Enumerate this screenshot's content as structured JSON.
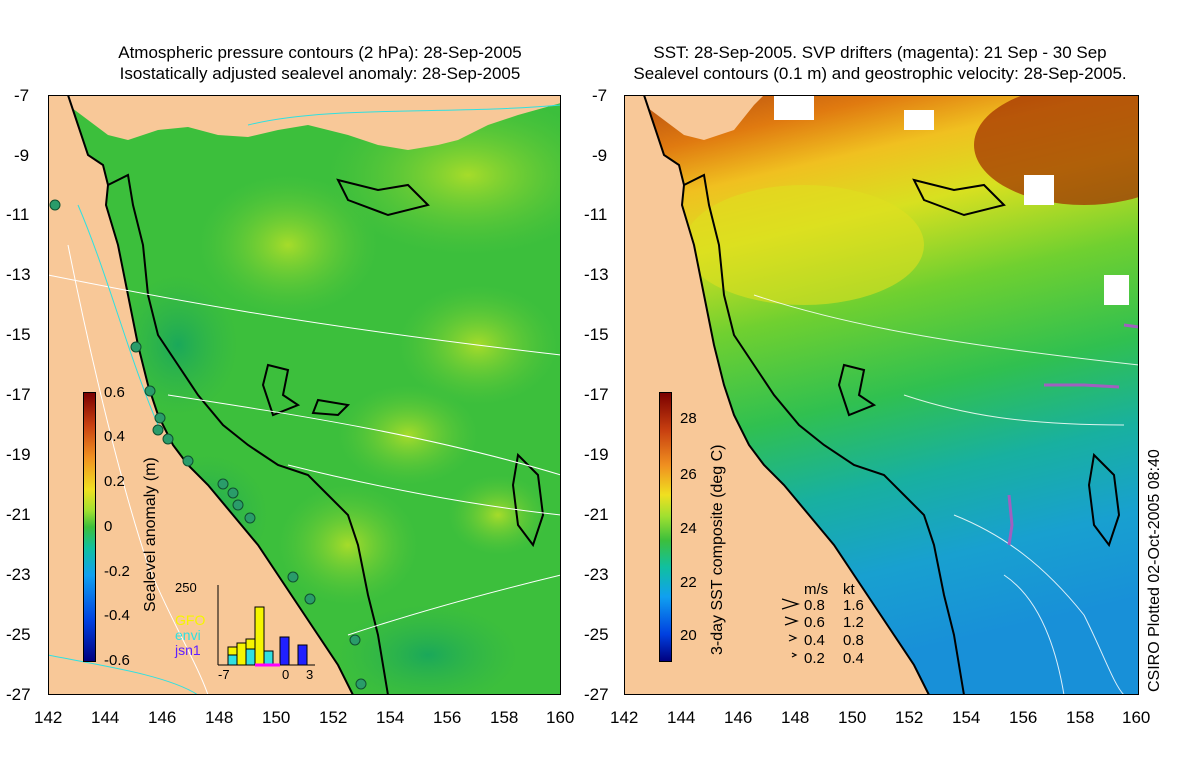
{
  "left_panel": {
    "title_line1": "Atmospheric pressure contours (2 hPa): 28-Sep-2005",
    "title_line2": "Isostatically adjusted sealevel anomaly: 28-Sep-2005",
    "colorbar_label": "Sealevel anomaly (m)",
    "colorbar_ticks": [
      "0.6",
      "0.4",
      "0.2",
      "0",
      "-0.2",
      "-0.4",
      "-0.6"
    ],
    "inset": {
      "ymax_label": "250",
      "legend": [
        "GFO",
        "envi",
        "jsn1"
      ],
      "legend_colors": [
        "#f5f500",
        "#30e0e0",
        "#6020ff"
      ],
      "x_ticks": [
        "-7",
        "0",
        "3"
      ]
    }
  },
  "right_panel": {
    "title_line1": "SST: 28-Sep-2005. SVP drifters (magenta): 21 Sep - 30 Sep",
    "title_line2": "Sealevel contours (0.1 m) and geostrophic velocity: 28-Sep-2005.",
    "colorbar_label": "3-day SST composite (deg C)",
    "colorbar_ticks": [
      "28",
      "26",
      "24",
      "22",
      "20"
    ],
    "velocity_legend": {
      "header_ms": "m/s",
      "header_kt": "kt",
      "rows": [
        {
          "ms": "0.8",
          "kt": "1.6"
        },
        {
          "ms": "0.6",
          "kt": "1.2"
        },
        {
          "ms": "0.4",
          "kt": "0.8"
        },
        {
          "ms": "0.2",
          "kt": "0.4"
        }
      ]
    }
  },
  "lat_ticks": [
    "-7",
    "-9",
    "-11",
    "-13",
    "-15",
    "-17",
    "-19",
    "-21",
    "-23",
    "-25",
    "-27"
  ],
  "lon_ticks": [
    "142",
    "144",
    "146",
    "148",
    "150",
    "152",
    "154",
    "156",
    "158",
    "160"
  ],
  "credit": "CSIRO Plotted 02-Oct-2005 08:40",
  "colors": {
    "land": "#f8c898",
    "sla_green": "#3cc23c",
    "sst_warm": "#d05a10",
    "contour": "#ffffff",
    "coast": "#000000"
  }
}
